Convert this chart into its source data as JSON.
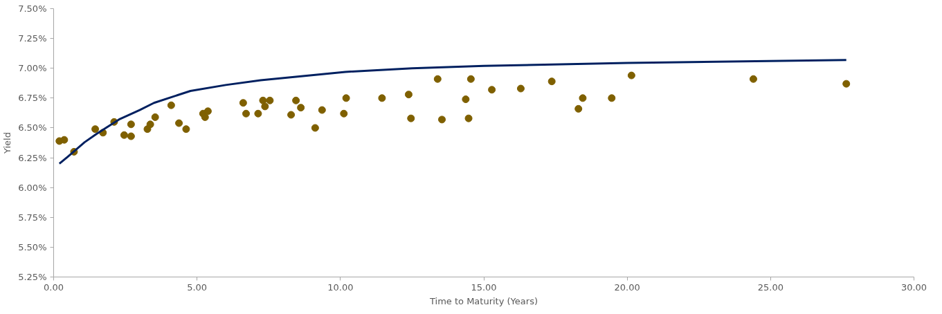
{
  "chart_data": {
    "type": "scatter",
    "xlabel": "Time to Maturity (Years)",
    "ylabel": "Yield",
    "xlim": [
      0,
      30
    ],
    "ylim": [
      5.25,
      7.5
    ],
    "xticks": [
      {
        "value": 0,
        "label": "0.00"
      },
      {
        "value": 5,
        "label": "5.00"
      },
      {
        "value": 10,
        "label": "10.00"
      },
      {
        "value": 15,
        "label": "15.00"
      },
      {
        "value": 20,
        "label": "20.00"
      },
      {
        "value": 25,
        "label": "25.00"
      },
      {
        "value": 30,
        "label": "30.00"
      }
    ],
    "yticks": [
      {
        "value": 5.25,
        "label": "5.25%"
      },
      {
        "value": 5.5,
        "label": "5.50%"
      },
      {
        "value": 5.75,
        "label": "5.75%"
      },
      {
        "value": 6,
        "label": "6.00%"
      },
      {
        "value": 6.25,
        "label": "6.25%"
      },
      {
        "value": 6.5,
        "label": "6.50%"
      },
      {
        "value": 6.75,
        "label": "6.75%"
      },
      {
        "value": 7,
        "label": "7.00%"
      },
      {
        "value": 7.25,
        "label": "7.25%"
      },
      {
        "value": 7.5,
        "label": "7.50%"
      }
    ],
    "grid": false,
    "marker": "circle",
    "series": [
      {
        "color": "#7f6000",
        "x": [
          0.2,
          0.37,
          0.71,
          1.45,
          1.72,
          2.11,
          2.46,
          2.7,
          2.7,
          3.27,
          3.37,
          3.54,
          4.1,
          4.37,
          4.62,
          5.21,
          5.28,
          5.38,
          6.61,
          6.71,
          7.13,
          7.3,
          7.37,
          7.54,
          8.28,
          8.45,
          8.62,
          9.12,
          9.36,
          10.12,
          10.2,
          11.45,
          12.38,
          12.46,
          13.39,
          13.54,
          14.37,
          14.47,
          14.55,
          15.28,
          16.29,
          17.37,
          18.3,
          18.45,
          19.46,
          20.15,
          24.4,
          27.64
        ],
        "values": [
          6.39,
          6.4,
          6.3,
          6.49,
          6.46,
          6.55,
          6.44,
          6.53,
          6.43,
          6.49,
          6.53,
          6.59,
          6.69,
          6.54,
          6.49,
          6.62,
          6.59,
          6.64,
          6.71,
          6.62,
          6.62,
          6.73,
          6.68,
          6.73,
          6.61,
          6.73,
          6.67,
          6.5,
          6.65,
          6.62,
          6.75,
          6.75,
          6.78,
          6.58,
          6.91,
          6.57,
          6.74,
          6.58,
          6.91,
          6.82,
          6.83,
          6.89,
          6.66,
          6.75,
          6.75,
          6.94,
          6.91,
          6.87
        ]
      },
      {
        "type": "line",
        "color": "#002060",
        "marker": "none",
        "x": [
          0.2,
          0.5,
          1.08,
          1.5,
          2.31,
          3,
          3.5,
          4.77,
          6,
          7.22,
          10.17,
          12.5,
          15,
          20,
          27.64
        ],
        "values": [
          6.2,
          6.26,
          6.38,
          6.45,
          6.575,
          6.65,
          6.71,
          6.81,
          6.86,
          6.9,
          6.97,
          7.0,
          7.02,
          7.045,
          7.07
        ]
      }
    ]
  }
}
